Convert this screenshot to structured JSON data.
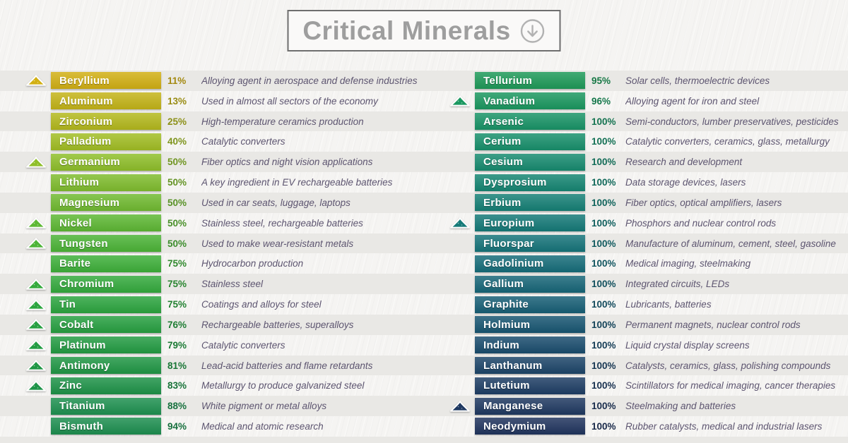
{
  "title": {
    "text": "Critical Minerals",
    "icon": "circle-down-arrow-icon"
  },
  "theme": {
    "page_bg": "#f5f4f2",
    "stripe": "#e9e8e5",
    "title_border": "#6e6e6e",
    "title_text": "#9e9e9e",
    "title_bg": "#faf9f8",
    "arrow": "#b2b2b2",
    "desc_text": "#5d5570",
    "bar_text": "#ffffff"
  },
  "columns": [
    {
      "rows": [
        {
          "name": "Beryllium",
          "pct": "11%",
          "desc": "Alloying agent in aerospace and defense industries",
          "color": "#d2b014",
          "icon": true
        },
        {
          "name": "Aluminum",
          "pct": "13%",
          "desc": "Used in almost all sectors of the economy",
          "color": "#c4b418",
          "icon": false
        },
        {
          "name": "Zirconium",
          "pct": "25%",
          "desc": "High-temperature ceramics production",
          "color": "#b4b91d",
          "icon": false
        },
        {
          "name": "Palladium",
          "pct": "40%",
          "desc": "Catalytic converters",
          "color": "#a2be24",
          "icon": false
        },
        {
          "name": "Germanium",
          "pct": "50%",
          "desc": "Fiber optics and night vision applications",
          "color": "#8fbf2a",
          "icon": true
        },
        {
          "name": "Lithium",
          "pct": "50%",
          "desc": "A key ingredient in EV rechargeable batteries",
          "color": "#80bd2e",
          "icon": false
        },
        {
          "name": "Magnesium",
          "pct": "50%",
          "desc": "Used in car seats, luggage, laptops",
          "color": "#71bb31",
          "icon": false
        },
        {
          "name": "Nickel",
          "pct": "50%",
          "desc": "Stainless steel, rechargeable batteries",
          "color": "#5eb834",
          "icon": true
        },
        {
          "name": "Tungsten",
          "pct": "50%",
          "desc": "Used to make wear-resistant metals",
          "color": "#4cb437",
          "icon": true
        },
        {
          "name": "Barite",
          "pct": "75%",
          "desc": "Hydrocarbon production",
          "color": "#3eb03a",
          "icon": false
        },
        {
          "name": "Chromium",
          "pct": "75%",
          "desc": "Stainless steel",
          "color": "#34aa3d",
          "icon": true
        },
        {
          "name": "Tin",
          "pct": "75%",
          "desc": "Coatings and alloys for steel",
          "color": "#2ca53f",
          "icon": true
        },
        {
          "name": "Cobalt",
          "pct": "76%",
          "desc": "Rechargeable batteries, superalloys",
          "color": "#27a041",
          "icon": true
        },
        {
          "name": "Platinum",
          "pct": "79%",
          "desc": "Catalytic converters",
          "color": "#239c43",
          "icon": true
        },
        {
          "name": "Antimony",
          "pct": "81%",
          "desc": "Lead-acid batteries and flame retardants",
          "color": "#209745",
          "icon": true
        },
        {
          "name": "Zinc",
          "pct": "83%",
          "desc": "Metallurgy to produce galvanized steel",
          "color": "#1e9348",
          "icon": true
        },
        {
          "name": "Titanium",
          "pct": "88%",
          "desc": "White pigment or metal alloys",
          "color": "#1e9150",
          "icon": false
        },
        {
          "name": "Bismuth",
          "pct": "94%",
          "desc": "Medical and atomic research",
          "color": "#1d8f50",
          "icon": false
        }
      ]
    },
    {
      "rows": [
        {
          "name": "Tellurium",
          "pct": "95%",
          "desc": "Solar cells, thermoelectric devices",
          "color": "#1e9a59",
          "icon": false
        },
        {
          "name": "Vanadium",
          "pct": "96%",
          "desc": "Alloying agent for iron and steel",
          "color": "#1b9860",
          "icon": true
        },
        {
          "name": "Arsenic",
          "pct": "100%",
          "desc": "Semi-conductors, lumber preservatives, pesticides",
          "color": "#199467",
          "icon": false
        },
        {
          "name": "Cerium",
          "pct": "100%",
          "desc": "Catalytic converters, ceramics, glass, metallurgy",
          "color": "#18906c",
          "icon": false
        },
        {
          "name": "Cesium",
          "pct": "100%",
          "desc": "Research and development",
          "color": "#178b70",
          "icon": false
        },
        {
          "name": "Dysprosium",
          "pct": "100%",
          "desc": "Data storage devices, lasers",
          "color": "#168673",
          "icon": false
        },
        {
          "name": "Erbium",
          "pct": "100%",
          "desc": "Fiber optics, optical amplifiers, lasers",
          "color": "#168076",
          "icon": false
        },
        {
          "name": "Europium",
          "pct": "100%",
          "desc": "Phosphors and nuclear control rods",
          "color": "#157a78",
          "icon": true
        },
        {
          "name": "Fluorspar",
          "pct": "100%",
          "desc": "Manufacture of aluminum, cement, steel, gasoline",
          "color": "#16747a",
          "icon": false
        },
        {
          "name": "Gadolinium",
          "pct": "100%",
          "desc": "Medical imaging, steelmaking",
          "color": "#166d7a",
          "icon": false
        },
        {
          "name": "Gallium",
          "pct": "100%",
          "desc": "Integrated circuits, LEDs",
          "color": "#176678",
          "icon": false
        },
        {
          "name": "Graphite",
          "pct": "100%",
          "desc": "Lubricants, batteries",
          "color": "#175f76",
          "icon": false
        },
        {
          "name": "Holmium",
          "pct": "100%",
          "desc": "Permanent magnets, nuclear control rods",
          "color": "#185672",
          "icon": false
        },
        {
          "name": "Indium",
          "pct": "100%",
          "desc": "Liquid crystal display screens",
          "color": "#1a4d6e",
          "icon": false
        },
        {
          "name": "Lanthanum",
          "pct": "100%",
          "desc": "Catalysts, ceramics, glass, polishing compounds",
          "color": "#1c4569",
          "icon": false
        },
        {
          "name": "Lutetium",
          "pct": "100%",
          "desc": "Scintillators for medical imaging, cancer therapies",
          "color": "#1e3e65",
          "icon": false
        },
        {
          "name": "Manganese",
          "pct": "100%",
          "desc": "Steelmaking and batteries",
          "color": "#1f3961",
          "icon": true
        },
        {
          "name": "Neodymium",
          "pct": "100%",
          "desc": "Rubber catalysts, medical and industrial lasers",
          "color": "#20345e",
          "icon": false
        }
      ]
    }
  ],
  "chart_data": {
    "type": "table",
    "title": "Critical Minerals",
    "rows": [
      {
        "mineral": "Beryllium",
        "percent": 11,
        "use": "Alloying agent in aerospace and defense industries"
      },
      {
        "mineral": "Aluminum",
        "percent": 13,
        "use": "Used in almost all sectors of the economy"
      },
      {
        "mineral": "Zirconium",
        "percent": 25,
        "use": "High-temperature ceramics production"
      },
      {
        "mineral": "Palladium",
        "percent": 40,
        "use": "Catalytic converters"
      },
      {
        "mineral": "Germanium",
        "percent": 50,
        "use": "Fiber optics and night vision applications"
      },
      {
        "mineral": "Lithium",
        "percent": 50,
        "use": "A key ingredient in EV rechargeable batteries"
      },
      {
        "mineral": "Magnesium",
        "percent": 50,
        "use": "Used in car seats, luggage, laptops"
      },
      {
        "mineral": "Nickel",
        "percent": 50,
        "use": "Stainless steel, rechargeable batteries"
      },
      {
        "mineral": "Tungsten",
        "percent": 50,
        "use": "Used to make wear-resistant metals"
      },
      {
        "mineral": "Barite",
        "percent": 75,
        "use": "Hydrocarbon production"
      },
      {
        "mineral": "Chromium",
        "percent": 75,
        "use": "Stainless steel"
      },
      {
        "mineral": "Tin",
        "percent": 75,
        "use": "Coatings and alloys for steel"
      },
      {
        "mineral": "Cobalt",
        "percent": 76,
        "use": "Rechargeable batteries, superalloys"
      },
      {
        "mineral": "Platinum",
        "percent": 79,
        "use": "Catalytic converters"
      },
      {
        "mineral": "Antimony",
        "percent": 81,
        "use": "Lead-acid batteries and flame retardants"
      },
      {
        "mineral": "Zinc",
        "percent": 83,
        "use": "Metallurgy to produce galvanized steel"
      },
      {
        "mineral": "Titanium",
        "percent": 88,
        "use": "White pigment or metal alloys"
      },
      {
        "mineral": "Bismuth",
        "percent": 94,
        "use": "Medical and atomic research"
      },
      {
        "mineral": "Tellurium",
        "percent": 95,
        "use": "Solar cells, thermoelectric devices"
      },
      {
        "mineral": "Vanadium",
        "percent": 96,
        "use": "Alloying agent for iron and steel"
      },
      {
        "mineral": "Arsenic",
        "percent": 100,
        "use": "Semi-conductors, lumber preservatives, pesticides"
      },
      {
        "mineral": "Cerium",
        "percent": 100,
        "use": "Catalytic converters, ceramics, glass, metallurgy"
      },
      {
        "mineral": "Cesium",
        "percent": 100,
        "use": "Research and development"
      },
      {
        "mineral": "Dysprosium",
        "percent": 100,
        "use": "Data storage devices, lasers"
      },
      {
        "mineral": "Erbium",
        "percent": 100,
        "use": "Fiber optics, optical amplifiers, lasers"
      },
      {
        "mineral": "Europium",
        "percent": 100,
        "use": "Phosphors and nuclear control rods"
      },
      {
        "mineral": "Fluorspar",
        "percent": 100,
        "use": "Manufacture of aluminum, cement, steel, gasoline"
      },
      {
        "mineral": "Gadolinium",
        "percent": 100,
        "use": "Medical imaging, steelmaking"
      },
      {
        "mineral": "Gallium",
        "percent": 100,
        "use": "Integrated circuits, LEDs"
      },
      {
        "mineral": "Graphite",
        "percent": 100,
        "use": "Lubricants, batteries"
      },
      {
        "mineral": "Holmium",
        "percent": 100,
        "use": "Permanent magnets, nuclear control rods"
      },
      {
        "mineral": "Indium",
        "percent": 100,
        "use": "Liquid crystal display screens"
      },
      {
        "mineral": "Lanthanum",
        "percent": 100,
        "use": "Catalysts, ceramics, glass, polishing compounds"
      },
      {
        "mineral": "Lutetium",
        "percent": 100,
        "use": "Scintillators for medical imaging, cancer therapies"
      },
      {
        "mineral": "Manganese",
        "percent": 100,
        "use": "Steelmaking and batteries"
      },
      {
        "mineral": "Neodymium",
        "percent": 100,
        "use": "Rubber catalysts, medical and industrial lasers"
      }
    ]
  }
}
